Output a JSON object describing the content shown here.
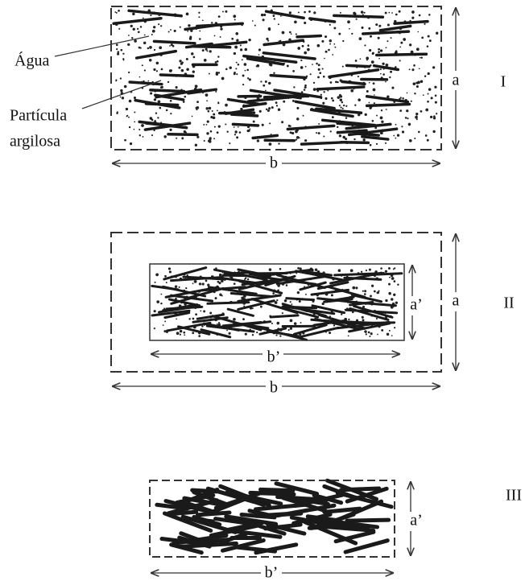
{
  "labels": {
    "water": "Água",
    "particle": [
      "Partícula",
      "argilosa"
    ]
  },
  "panels": [
    {
      "id": "I",
      "height_label": "a",
      "width_label": "b"
    },
    {
      "id": "II",
      "outer_height_label": "a",
      "outer_width_label": "b",
      "inner_height_label": "a’",
      "inner_width_label": "b’"
    },
    {
      "id": "III",
      "height_label": "a’",
      "width_label": "b’"
    }
  ]
}
